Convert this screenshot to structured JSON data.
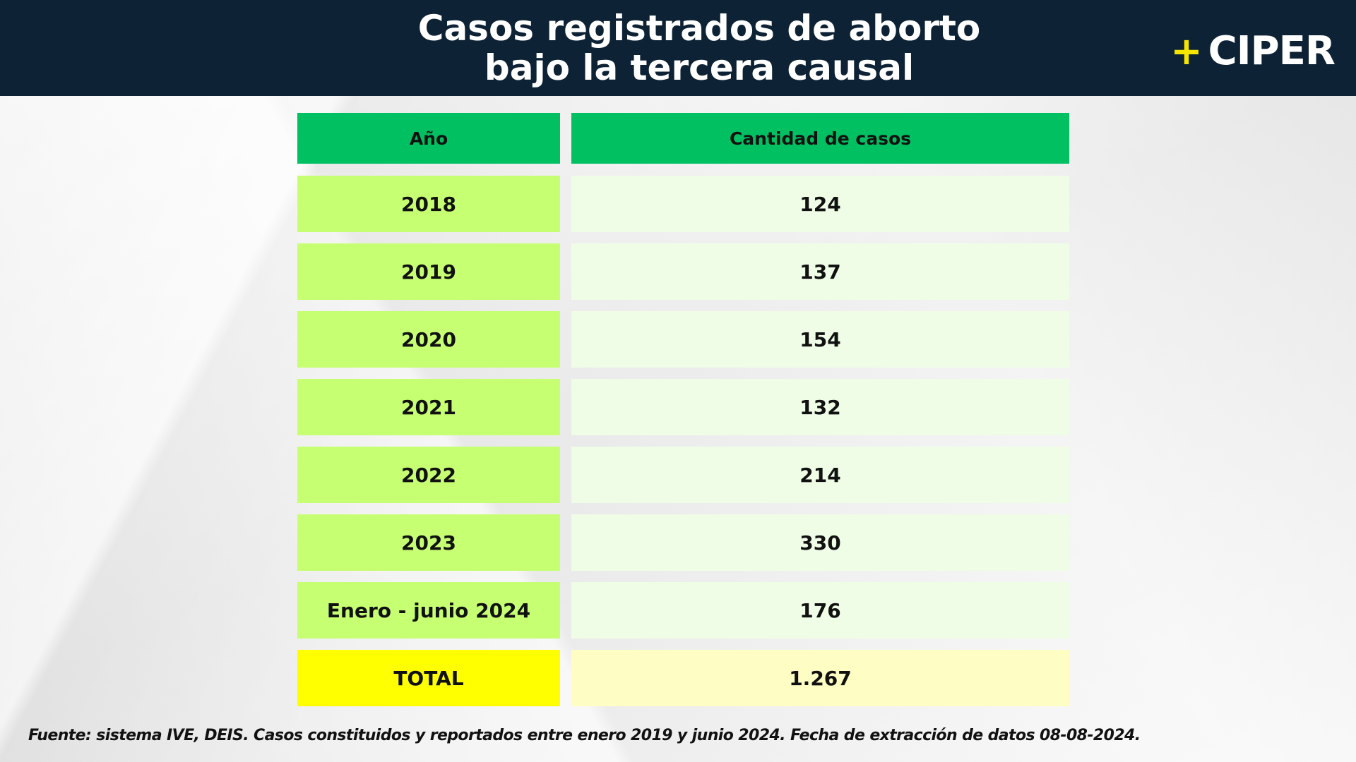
{
  "title_lines": [
    "Casos registrados de aborto",
    "bajo la tercera causal"
  ],
  "logo": {
    "plus": "+",
    "text": "CIPER"
  },
  "chart_data": {
    "type": "table",
    "columns": [
      "Año",
      "Cantidad de casos"
    ],
    "rows": [
      {
        "year": "2018",
        "count": "124"
      },
      {
        "year": "2019",
        "count": "137"
      },
      {
        "year": "2020",
        "count": "154"
      },
      {
        "year": "2021",
        "count": "132"
      },
      {
        "year": "2022",
        "count": "214"
      },
      {
        "year": "2023",
        "count": "330"
      },
      {
        "year": "Enero - junio 2024",
        "count": "176"
      }
    ],
    "total": {
      "label": "TOTAL",
      "value": "1.267"
    }
  },
  "source": "Fuente: sistema IVE, DEIS. Casos constituidos y reportados entre enero 2019 y junio 2024. Fecha de extracción de datos 08-08-2024.",
  "colors": {
    "header_bg": "#0d2235",
    "column_header": "#00c061",
    "year_cell": "#c6ff72",
    "count_cell": "#f0fde6",
    "total_year_cell": "#ffff00",
    "total_count_cell": "#fefdc3",
    "logo_plus": "#f5e600"
  }
}
